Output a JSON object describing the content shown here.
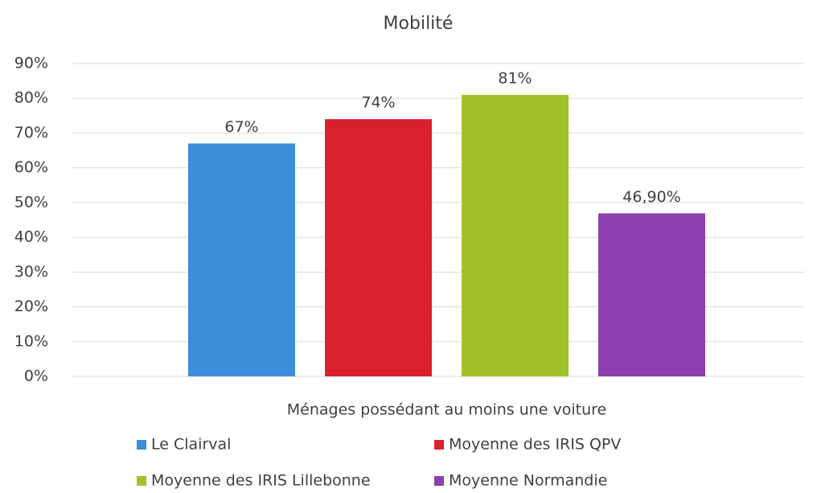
{
  "chart_data": {
    "type": "bar",
    "title": "Mobilité",
    "categories": [
      "Ménages possédant au moins une voiture"
    ],
    "series": [
      {
        "name": "Le Clairval",
        "color": "#3a8fd8",
        "values": [
          67
        ],
        "value_labels": [
          "67%"
        ]
      },
      {
        "name": "Moyenne des IRIS QPV",
        "color": "#d9202e",
        "values": [
          74
        ],
        "value_labels": [
          "74%"
        ]
      },
      {
        "name": "Moyenne des IRIS Lillebonne",
        "color": "#a3c12a",
        "values": [
          81
        ],
        "value_labels": [
          "81%"
        ]
      },
      {
        "name": "Moyenne Normandie",
        "color": "#8e3fae",
        "values": [
          46.9
        ],
        "value_labels": [
          "46,90%"
        ]
      }
    ],
    "ylim": [
      0,
      90
    ],
    "yticks": [
      {
        "value": 0,
        "label": "0%"
      },
      {
        "value": 10,
        "label": "10%"
      },
      {
        "value": 20,
        "label": "20%"
      },
      {
        "value": 30,
        "label": "30%"
      },
      {
        "value": 40,
        "label": "40%"
      },
      {
        "value": 50,
        "label": "50%"
      },
      {
        "value": 60,
        "label": "60%"
      },
      {
        "value": 70,
        "label": "70%"
      },
      {
        "value": 80,
        "label": "80%"
      },
      {
        "value": 90,
        "label": "90%"
      }
    ],
    "grid": true,
    "legend": "bottom"
  }
}
